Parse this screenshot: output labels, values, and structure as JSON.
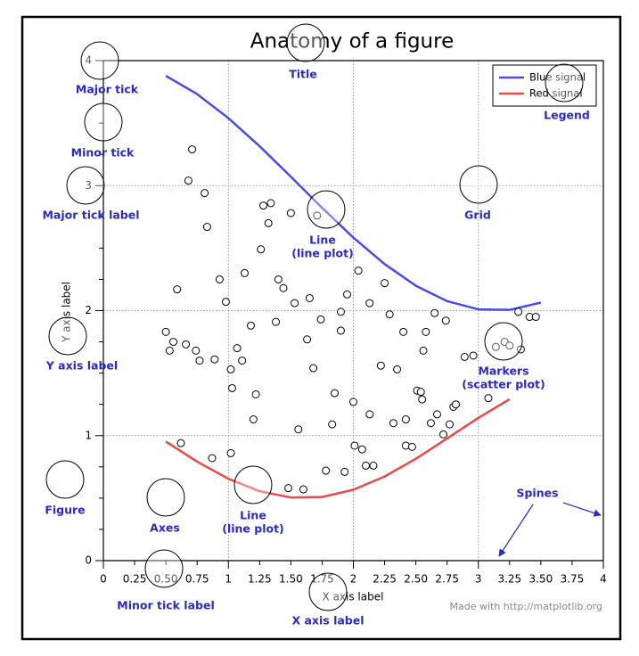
{
  "chart_data": {
    "type": "line",
    "title": "Anatomy of a figure",
    "xlabel": "X axis label",
    "ylabel": "Y axis label",
    "xlim": [
      0,
      4
    ],
    "ylim": [
      0,
      4
    ],
    "xticks": [
      0,
      0.25,
      {
        "value": 0.5,
        "label": "0.50"
      },
      0.75,
      1,
      1.25,
      {
        "value": 1.5,
        "label": "1.50"
      },
      1.75,
      2,
      2.25,
      {
        "value": 2.5,
        "label": "2.50"
      },
      2.75,
      3,
      3.25,
      {
        "value": 3.5,
        "label": "3.50"
      },
      3.75,
      4
    ],
    "yticks": [
      0,
      1,
      2,
      3,
      4
    ],
    "yticks_minor": [
      0.25,
      0.5,
      0.75,
      1.25,
      1.5,
      1.75,
      2.25,
      2.5,
      2.75,
      3.25,
      3.5,
      3.75
    ],
    "grid": true,
    "legend": "upper right",
    "series": [
      {
        "name": "Blue signal",
        "color": "#4b4be6",
        "x": [
          0.5,
          0.75,
          1.0,
          1.25,
          1.5,
          1.75,
          2.0,
          2.25,
          2.5,
          2.75,
          3.0,
          3.25,
          3.5
        ],
        "values": [
          3.878,
          3.732,
          3.54,
          3.315,
          3.071,
          2.822,
          2.584,
          2.372,
          2.199,
          2.076,
          2.01,
          2.006,
          2.064
        ]
      },
      {
        "name": "Red signal",
        "color": "#ec4a4a",
        "x": [
          0.5,
          0.75,
          1.0,
          1.25,
          1.5,
          1.75,
          2.0,
          2.25,
          2.5,
          2.75,
          3.0,
          3.25
        ],
        "values": [
          0.952,
          0.792,
          0.655,
          0.555,
          0.505,
          0.509,
          0.567,
          0.673,
          0.815,
          0.977,
          1.142,
          1.291
        ]
      }
    ],
    "scatter": {
      "color": "#000000",
      "x": [
        0.71,
        0.68,
        0.81,
        0.83,
        0.59,
        0.93,
        0.98,
        1.13,
        1.26,
        1.28,
        1.34,
        1.32,
        1.5,
        1.71,
        1.4,
        1.44,
        1.65,
        1.53,
        1.38,
        1.74,
        1.63,
        1.9,
        1.95,
        1.9,
        2.04,
        2.13,
        2.25,
        2.29,
        2.4,
        2.58,
        2.65,
        2.74,
        2.56,
        2.35,
        2.22,
        1.68,
        1.85,
        1.83,
        1.56,
        1.18,
        1.07,
        1.11,
        1.02,
        0.5,
        0.53,
        0.56,
        0.66,
        0.74,
        0.77,
        0.89,
        1.03,
        1.22,
        1.2,
        2.0,
        2.13,
        2.32,
        2.42,
        2.51,
        2.54,
        2.55,
        2.67,
        2.62,
        2.8,
        2.82,
        2.96,
        2.89,
        3.14,
        3.21,
        3.25,
        3.34,
        3.32,
        3.41,
        3.46,
        0.62,
        0.87,
        1.02,
        1.48,
        1.6,
        1.78,
        1.93,
        2.01,
        2.07,
        2.1,
        2.16,
        2.42,
        2.47,
        2.72,
        2.77,
        3.08
      ],
      "values": [
        3.29,
        3.04,
        2.94,
        2.67,
        2.17,
        2.25,
        2.07,
        2.3,
        2.49,
        2.84,
        2.86,
        2.7,
        2.78,
        2.76,
        2.25,
        2.18,
        2.1,
        2.06,
        1.91,
        1.93,
        1.77,
        1.99,
        2.13,
        1.84,
        2.32,
        2.06,
        2.22,
        1.97,
        1.83,
        1.83,
        1.98,
        1.92,
        1.68,
        1.53,
        1.56,
        1.54,
        1.34,
        1.09,
        1.05,
        1.88,
        1.7,
        1.6,
        1.53,
        1.83,
        1.68,
        1.75,
        1.73,
        1.68,
        1.6,
        1.61,
        1.38,
        1.33,
        1.13,
        1.27,
        1.17,
        1.1,
        1.13,
        1.36,
        1.35,
        1.29,
        1.17,
        1.1,
        1.23,
        1.25,
        1.64,
        1.63,
        1.71,
        1.75,
        1.72,
        1.69,
        1.99,
        1.95,
        1.95,
        0.94,
        0.82,
        0.86,
        0.58,
        0.57,
        0.72,
        0.71,
        0.92,
        0.89,
        0.76,
        0.76,
        0.92,
        0.91,
        1.01,
        1.09,
        1.3
      ]
    },
    "annotations": [
      [
        "Major tick"
      ],
      [
        "Minor tick"
      ],
      [
        "Major tick label"
      ],
      [
        "Y axis label"
      ],
      [
        "Figure"
      ],
      [
        "Axes"
      ],
      [
        "Line",
        "(line plot)"
      ],
      [
        "Line",
        "(line plot)"
      ],
      [
        "Title"
      ],
      [
        "Legend"
      ],
      [
        "Grid"
      ],
      [
        "Markers",
        "(scatter plot)"
      ],
      [
        "Spines"
      ],
      [
        "Minor tick label"
      ],
      [
        "X axis label"
      ]
    ],
    "credit": "Made with http://matplotlib.org"
  }
}
